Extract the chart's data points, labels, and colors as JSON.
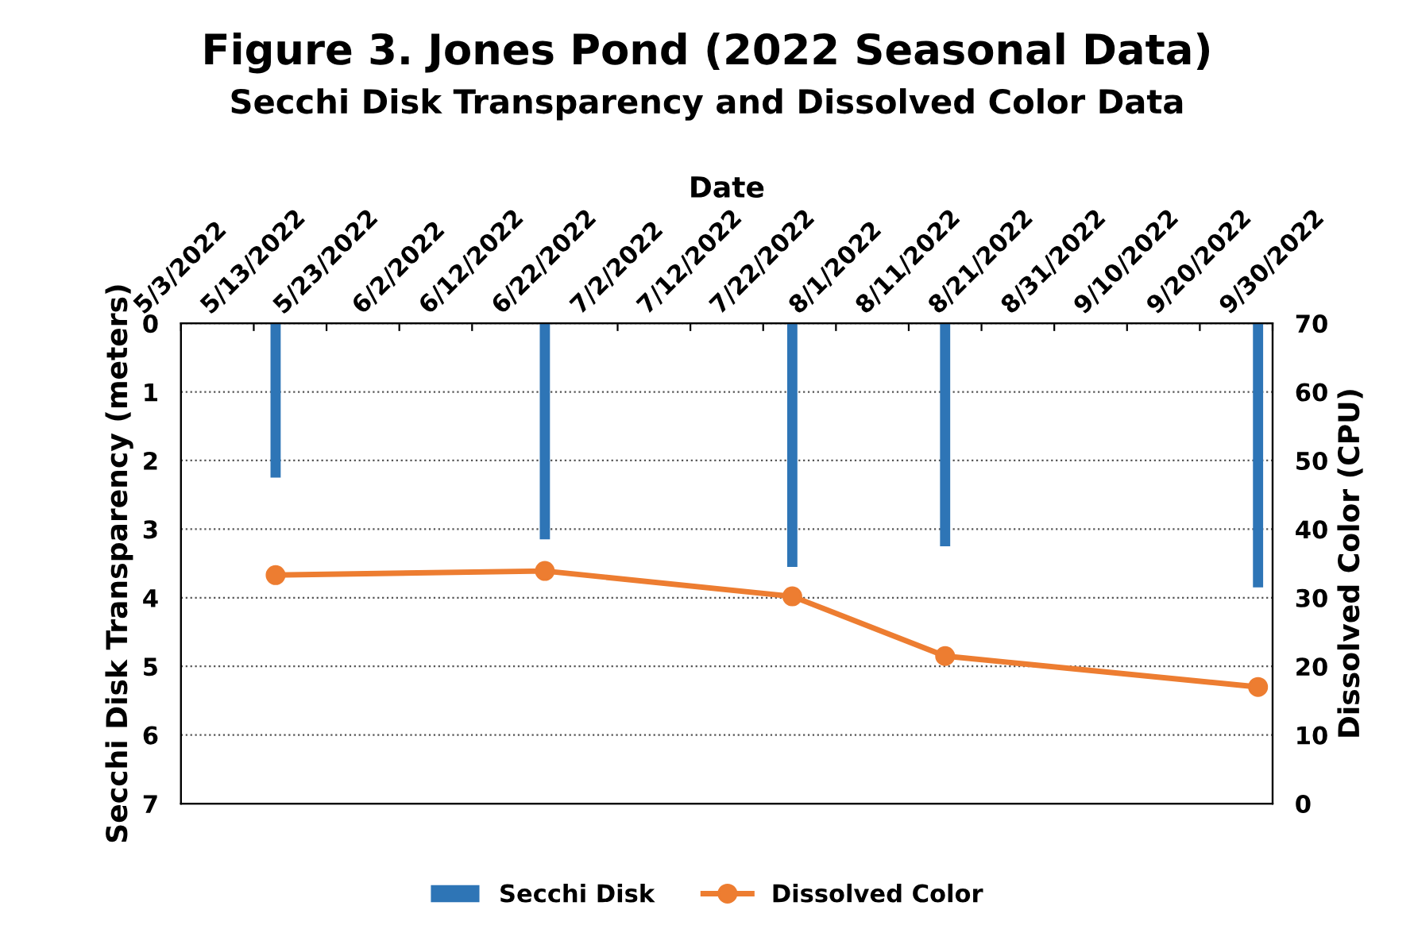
{
  "chart_data": {
    "type": "bar",
    "title": "Figure 3. Jones Pond (2022 Seasonal Data)",
    "subtitle": "Secchi Disk Transparency and Dissolved Color Data",
    "xlabel": "Date",
    "ylabel": "Secchi Disk Transparency (meters)",
    "y2label": "Dissolved Color (CPU)",
    "x": [
      "2022-05-16",
      "2022-06-22",
      "2022-07-26",
      "2022-08-16",
      "2022-09-28"
    ],
    "series": [
      {
        "name": "Secchi Disk",
        "color": "#2e75b6",
        "values": [
          2.25,
          3.15,
          3.55,
          3.25,
          3.85
        ]
      },
      {
        "name": "Dissolved Color",
        "type": "line",
        "axis": "y2",
        "color": "#ed7d31",
        "marker": "circle",
        "values": [
          33.3,
          33.9,
          30.2,
          21.5,
          17
        ]
      }
    ],
    "xlim": [
      "2022-05-03",
      "2022-09-30"
    ],
    "xticks": [
      {
        "value": "2022-05-03",
        "label": "5/3/2022"
      },
      {
        "value": "2022-05-13",
        "label": "5/13/2022"
      },
      {
        "value": "2022-05-23",
        "label": "5/23/2022"
      },
      {
        "value": "2022-06-02",
        "label": "6/2/2022"
      },
      {
        "value": "2022-06-12",
        "label": "6/12/2022"
      },
      {
        "value": "2022-06-22",
        "label": "6/22/2022"
      },
      {
        "value": "2022-07-02",
        "label": "7/2/2022"
      },
      {
        "value": "2022-07-12",
        "label": "7/12/2022"
      },
      {
        "value": "2022-07-22",
        "label": "7/22/2022"
      },
      {
        "value": "2022-08-01",
        "label": "8/1/2022"
      },
      {
        "value": "2022-08-11",
        "label": "8/11/2022"
      },
      {
        "value": "2022-08-21",
        "label": "8/21/2022"
      },
      {
        "value": "2022-08-31",
        "label": "8/31/2022"
      },
      {
        "value": "2022-09-10",
        "label": "9/10/2022"
      },
      {
        "value": "2022-09-20",
        "label": "9/20/2022"
      },
      {
        "value": "2022-09-30",
        "label": "9/30/2022"
      }
    ],
    "ylim": [
      7,
      0
    ],
    "yticks": [
      0,
      1,
      2,
      3,
      4,
      5,
      6,
      7
    ],
    "y2lim": [
      0,
      70
    ],
    "y2ticks": [
      0,
      10,
      20,
      30,
      40,
      50,
      60,
      70
    ],
    "grid": "y",
    "legend": "bottom"
  }
}
